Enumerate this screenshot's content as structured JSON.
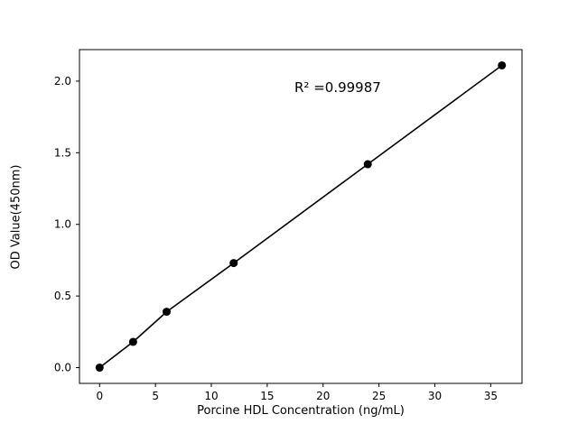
{
  "chart_data": {
    "type": "scatter",
    "x": [
      0,
      3,
      6,
      12,
      24,
      36
    ],
    "y": [
      0.0,
      0.18,
      0.39,
      0.73,
      1.42,
      2.11
    ],
    "annotation": "R² =0.99987",
    "title": "",
    "xlabel": "Porcine HDL Concentration (ng/mL)",
    "ylabel": "OD Value(450nm)",
    "xlim": [
      -1.8,
      37.8
    ],
    "ylim": [
      -0.11,
      2.22
    ],
    "xticks": [
      0,
      5,
      10,
      15,
      20,
      25,
      30,
      35
    ],
    "yticks": [
      0.0,
      0.5,
      1.0,
      1.5,
      2.0
    ],
    "grid": false,
    "legend": "none",
    "line_color": "#000000",
    "marker_color": "#000000",
    "frame_color": "#000000",
    "background": "#ffffff",
    "marker_radius": 4.5
  }
}
